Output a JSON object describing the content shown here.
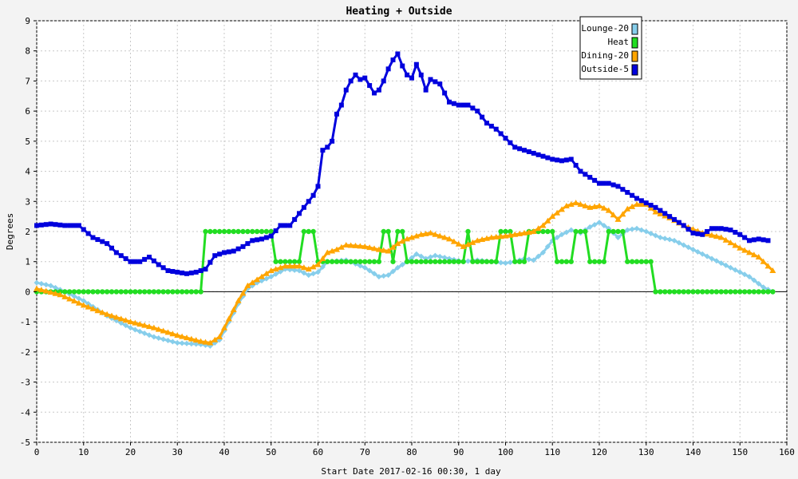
{
  "chart_data": {
    "type": "line",
    "title": "Heating + Outside",
    "xlabel": "Start Date 2017-02-16 00:30, 1 day",
    "ylabel": "Degrees",
    "xlim": [
      0,
      160
    ],
    "ylim": [
      -5,
      9
    ],
    "x_ticks": [
      0,
      10,
      20,
      30,
      40,
      50,
      60,
      70,
      80,
      90,
      100,
      110,
      120,
      130,
      140,
      150,
      160
    ],
    "y_ticks": [
      -5,
      -4,
      -3,
      -2,
      -1,
      0,
      1,
      2,
      3,
      4,
      5,
      6,
      7,
      8,
      9
    ],
    "grid": true,
    "legend_position": "top-right",
    "series": [
      {
        "name": "Lounge-20",
        "color": "#87ceeb",
        "marker": "diamond",
        "points": [
          [
            0,
            0.3
          ],
          [
            3,
            0.2
          ],
          [
            6,
            0.0
          ],
          [
            10,
            -0.3
          ],
          [
            15,
            -0.8
          ],
          [
            20,
            -1.2
          ],
          [
            25,
            -1.5
          ],
          [
            30,
            -1.7
          ],
          [
            35,
            -1.75
          ],
          [
            37,
            -1.8
          ],
          [
            39,
            -1.6
          ],
          [
            41,
            -1.0
          ],
          [
            43,
            -0.4
          ],
          [
            45,
            0.1
          ],
          [
            47,
            0.3
          ],
          [
            50,
            0.5
          ],
          [
            53,
            0.75
          ],
          [
            56,
            0.7
          ],
          [
            58,
            0.55
          ],
          [
            60,
            0.65
          ],
          [
            62,
            1.0
          ],
          [
            66,
            1.05
          ],
          [
            70,
            0.8
          ],
          [
            73,
            0.5
          ],
          [
            75,
            0.55
          ],
          [
            77,
            0.8
          ],
          [
            79,
            1.0
          ],
          [
            81,
            1.25
          ],
          [
            83,
            1.1
          ],
          [
            85,
            1.2
          ],
          [
            88,
            1.1
          ],
          [
            91,
            1.0
          ],
          [
            94,
            1.05
          ],
          [
            97,
            1.0
          ],
          [
            100,
            0.95
          ],
          [
            102,
            1.0
          ],
          [
            104,
            1.1
          ],
          [
            106,
            1.05
          ],
          [
            108,
            1.3
          ],
          [
            110,
            1.7
          ],
          [
            112,
            1.9
          ],
          [
            114,
            2.05
          ],
          [
            116,
            1.95
          ],
          [
            118,
            2.15
          ],
          [
            120,
            2.3
          ],
          [
            122,
            2.1
          ],
          [
            124,
            1.8
          ],
          [
            126,
            2.05
          ],
          [
            128,
            2.1
          ],
          [
            130,
            2.0
          ],
          [
            133,
            1.8
          ],
          [
            136,
            1.7
          ],
          [
            140,
            1.4
          ],
          [
            144,
            1.1
          ],
          [
            148,
            0.8
          ],
          [
            152,
            0.5
          ],
          [
            155,
            0.15
          ],
          [
            157,
            0.0
          ]
        ]
      },
      {
        "name": "Heat",
        "color": "#22dd22",
        "marker": "circle",
        "points": [
          [
            0,
            0
          ],
          [
            35,
            0
          ],
          [
            36,
            2
          ],
          [
            50,
            2
          ],
          [
            51,
            1
          ],
          [
            56,
            1
          ],
          [
            57,
            2
          ],
          [
            59,
            2
          ],
          [
            60,
            1
          ],
          [
            73,
            1
          ],
          [
            74,
            2
          ],
          [
            75,
            2
          ],
          [
            76,
            1
          ],
          [
            77,
            2
          ],
          [
            78,
            2
          ],
          [
            79,
            1
          ],
          [
            91,
            1
          ],
          [
            92,
            2
          ],
          [
            93,
            1
          ],
          [
            98,
            1
          ],
          [
            99,
            2
          ],
          [
            101,
            2
          ],
          [
            102,
            1
          ],
          [
            104,
            1
          ],
          [
            105,
            2
          ],
          [
            110,
            2
          ],
          [
            111,
            1
          ],
          [
            114,
            1
          ],
          [
            115,
            2
          ],
          [
            117,
            2
          ],
          [
            118,
            1
          ],
          [
            121,
            1
          ],
          [
            122,
            2
          ],
          [
            125,
            2
          ],
          [
            126,
            1
          ],
          [
            131,
            1
          ],
          [
            132,
            0
          ],
          [
            157,
            0
          ]
        ]
      },
      {
        "name": "Dining-20",
        "color": "#ffa500",
        "marker": "triangle",
        "points": [
          [
            0,
            0.1
          ],
          [
            5,
            -0.1
          ],
          [
            10,
            -0.45
          ],
          [
            15,
            -0.75
          ],
          [
            20,
            -1.0
          ],
          [
            25,
            -1.2
          ],
          [
            30,
            -1.45
          ],
          [
            35,
            -1.65
          ],
          [
            37,
            -1.7
          ],
          [
            39,
            -1.5
          ],
          [
            41,
            -0.9
          ],
          [
            43,
            -0.3
          ],
          [
            45,
            0.2
          ],
          [
            47,
            0.4
          ],
          [
            50,
            0.7
          ],
          [
            53,
            0.85
          ],
          [
            56,
            0.85
          ],
          [
            58,
            0.75
          ],
          [
            60,
            0.9
          ],
          [
            62,
            1.3
          ],
          [
            64,
            1.4
          ],
          [
            66,
            1.55
          ],
          [
            70,
            1.5
          ],
          [
            73,
            1.4
          ],
          [
            75,
            1.35
          ],
          [
            77,
            1.6
          ],
          [
            79,
            1.75
          ],
          [
            82,
            1.9
          ],
          [
            84,
            1.95
          ],
          [
            88,
            1.75
          ],
          [
            91,
            1.5
          ],
          [
            94,
            1.7
          ],
          [
            97,
            1.8
          ],
          [
            100,
            1.85
          ],
          [
            102,
            1.9
          ],
          [
            106,
            2.0
          ],
          [
            108,
            2.2
          ],
          [
            110,
            2.5
          ],
          [
            113,
            2.85
          ],
          [
            115,
            2.95
          ],
          [
            118,
            2.8
          ],
          [
            120,
            2.85
          ],
          [
            122,
            2.7
          ],
          [
            124,
            2.4
          ],
          [
            126,
            2.75
          ],
          [
            128,
            2.9
          ],
          [
            130,
            2.9
          ],
          [
            132,
            2.65
          ],
          [
            135,
            2.45
          ],
          [
            138,
            2.2
          ],
          [
            142,
            1.95
          ],
          [
            146,
            1.8
          ],
          [
            150,
            1.45
          ],
          [
            154,
            1.15
          ],
          [
            157,
            0.7
          ]
        ]
      },
      {
        "name": "Outside-5",
        "color": "#0000dd",
        "marker": "square",
        "points": [
          [
            0,
            2.2
          ],
          [
            3,
            2.25
          ],
          [
            6,
            2.2
          ],
          [
            9,
            2.2
          ],
          [
            12,
            1.8
          ],
          [
            15,
            1.6
          ],
          [
            17,
            1.3
          ],
          [
            20,
            1.0
          ],
          [
            22,
            1.0
          ],
          [
            24,
            1.15
          ],
          [
            26,
            0.9
          ],
          [
            28,
            0.7
          ],
          [
            30,
            0.65
          ],
          [
            32,
            0.6
          ],
          [
            34,
            0.65
          ],
          [
            36,
            0.75
          ],
          [
            38,
            1.2
          ],
          [
            40,
            1.3
          ],
          [
            42,
            1.35
          ],
          [
            44,
            1.5
          ],
          [
            46,
            1.7
          ],
          [
            48,
            1.75
          ],
          [
            50,
            1.85
          ],
          [
            52,
            2.2
          ],
          [
            54,
            2.2
          ],
          [
            56,
            2.6
          ],
          [
            58,
            3.0
          ],
          [
            59,
            3.2
          ],
          [
            60,
            3.5
          ],
          [
            61,
            4.7
          ],
          [
            62,
            4.8
          ],
          [
            63,
            5.0
          ],
          [
            64,
            5.9
          ],
          [
            65,
            6.2
          ],
          [
            66,
            6.7
          ],
          [
            67,
            7.0
          ],
          [
            68,
            7.2
          ],
          [
            69,
            7.05
          ],
          [
            70,
            7.1
          ],
          [
            72,
            6.6
          ],
          [
            73,
            6.7
          ],
          [
            74,
            7.0
          ],
          [
            75,
            7.4
          ],
          [
            76,
            7.7
          ],
          [
            77,
            7.9
          ],
          [
            78,
            7.5
          ],
          [
            79,
            7.2
          ],
          [
            80,
            7.1
          ],
          [
            81,
            7.55
          ],
          [
            82,
            7.2
          ],
          [
            83,
            6.7
          ],
          [
            84,
            7.05
          ],
          [
            86,
            6.9
          ],
          [
            88,
            6.3
          ],
          [
            90,
            6.2
          ],
          [
            92,
            6.2
          ],
          [
            94,
            6.0
          ],
          [
            96,
            5.6
          ],
          [
            98,
            5.4
          ],
          [
            100,
            5.1
          ],
          [
            102,
            4.8
          ],
          [
            104,
            4.7
          ],
          [
            106,
            4.6
          ],
          [
            108,
            4.5
          ],
          [
            110,
            4.4
          ],
          [
            112,
            4.35
          ],
          [
            114,
            4.4
          ],
          [
            116,
            4.0
          ],
          [
            118,
            3.8
          ],
          [
            120,
            3.6
          ],
          [
            122,
            3.6
          ],
          [
            124,
            3.5
          ],
          [
            126,
            3.3
          ],
          [
            128,
            3.1
          ],
          [
            130,
            2.95
          ],
          [
            132,
            2.8
          ],
          [
            134,
            2.6
          ],
          [
            136,
            2.4
          ],
          [
            138,
            2.2
          ],
          [
            140,
            1.95
          ],
          [
            142,
            1.9
          ],
          [
            144,
            2.1
          ],
          [
            146,
            2.1
          ],
          [
            148,
            2.05
          ],
          [
            150,
            1.9
          ],
          [
            152,
            1.7
          ],
          [
            154,
            1.75
          ],
          [
            156,
            1.7
          ]
        ]
      }
    ]
  }
}
